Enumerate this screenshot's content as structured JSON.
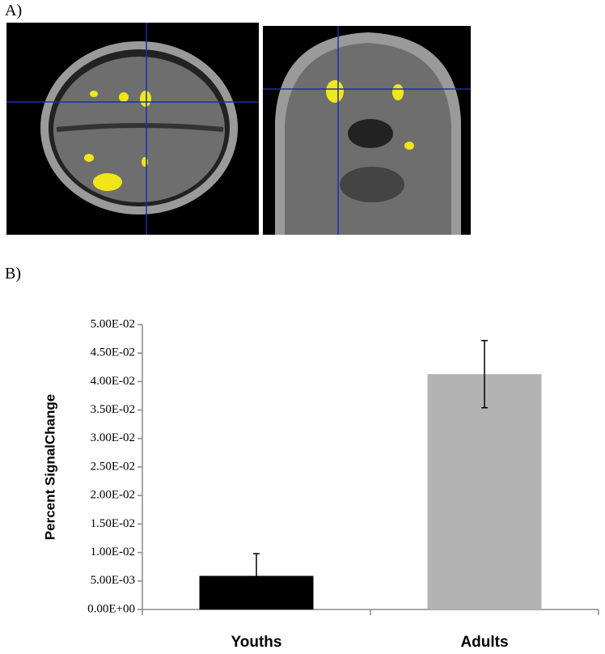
{
  "panel_labels": [
    "A)",
    "B)"
  ],
  "chart_data": {
    "type": "bar",
    "y_label": "Percent SignalChange",
    "categories": [
      "Youths",
      "Adults"
    ],
    "values": [
      0.0059,
      0.0413
    ],
    "errors": [
      0.0039,
      0.0059
    ],
    "colors": [
      "#000000",
      "#b3b3b3"
    ],
    "ylim": [
      0,
      0.05
    ],
    "yticks": [
      {
        "value": 0,
        "label": "0.00E+00"
      },
      {
        "value": 0.005,
        "label": "5.00E-03"
      },
      {
        "value": 0.01,
        "label": "1.00E-02"
      },
      {
        "value": 0.015,
        "label": "1.50E-02"
      },
      {
        "value": 0.02,
        "label": "2.00E-02"
      },
      {
        "value": 0.025,
        "label": "2.50E-02"
      },
      {
        "value": 0.03,
        "label": "3.00E-02"
      },
      {
        "value": 0.035,
        "label": "3.50E-02"
      },
      {
        "value": 0.04,
        "label": "4.00E-02"
      },
      {
        "value": 0.045,
        "label": "4.50E-02"
      },
      {
        "value": 0.05,
        "label": "5.00E-02"
      }
    ]
  }
}
